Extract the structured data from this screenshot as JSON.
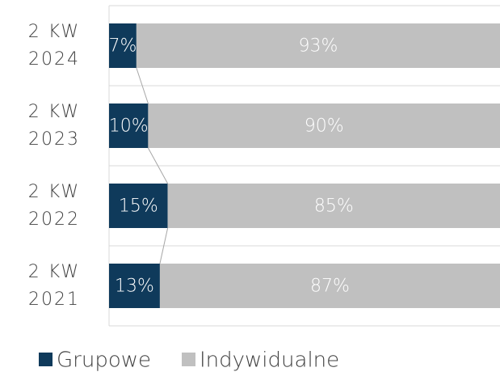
{
  "chart_data": {
    "type": "stacked_barh",
    "categories": [
      "2 KW 2024",
      "2 KW 2023",
      "2 KW 2022",
      "2 KW 2021"
    ],
    "series": [
      {
        "name": "Grupowe",
        "color": "#0f3a5b",
        "values": [
          7,
          10,
          15,
          13
        ],
        "value_labels": [
          "7%",
          "10%",
          "15%",
          "13%"
        ]
      },
      {
        "name": "Indywidualne",
        "color": "#c0c0c0",
        "values": [
          93,
          90,
          85,
          87
        ],
        "value_labels": [
          "93%",
          "90%",
          "85%",
          "87%"
        ]
      }
    ],
    "xlim": [
      0,
      100
    ],
    "series_lines": true,
    "legend": "bottom"
  }
}
